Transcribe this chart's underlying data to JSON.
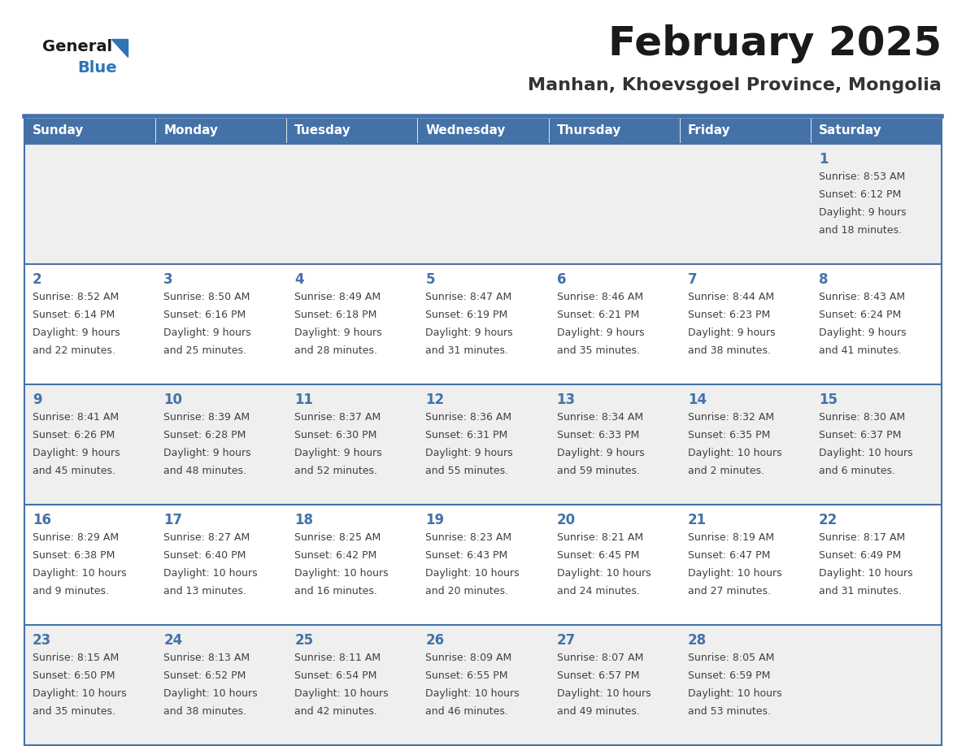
{
  "title": "February 2025",
  "subtitle": "Manhan, Khoevsgoel Province, Mongolia",
  "days_of_week": [
    "Sunday",
    "Monday",
    "Tuesday",
    "Wednesday",
    "Thursday",
    "Friday",
    "Saturday"
  ],
  "header_bg": "#4472a8",
  "header_text": "#ffffff",
  "cell_bg_even": "#efefef",
  "cell_bg_odd": "#ffffff",
  "border_color": "#4472a8",
  "day_number_color": "#4472a8",
  "text_color": "#404040",
  "title_color": "#1a1a1a",
  "subtitle_color": "#333333",
  "logo_text_color": "#1a1a1a",
  "logo_blue_color": "#2e75b6",
  "title_fontsize": 36,
  "subtitle_fontsize": 16,
  "header_fontsize": 11,
  "day_num_fontsize": 12,
  "cell_fontsize": 9,
  "weeks": [
    {
      "days": [
        {
          "day": null,
          "sunrise": null,
          "sunset": null,
          "daylight_line1": null,
          "daylight_line2": null
        },
        {
          "day": null,
          "sunrise": null,
          "sunset": null,
          "daylight_line1": null,
          "daylight_line2": null
        },
        {
          "day": null,
          "sunrise": null,
          "sunset": null,
          "daylight_line1": null,
          "daylight_line2": null
        },
        {
          "day": null,
          "sunrise": null,
          "sunset": null,
          "daylight_line1": null,
          "daylight_line2": null
        },
        {
          "day": null,
          "sunrise": null,
          "sunset": null,
          "daylight_line1": null,
          "daylight_line2": null
        },
        {
          "day": null,
          "sunrise": null,
          "sunset": null,
          "daylight_line1": null,
          "daylight_line2": null
        },
        {
          "day": 1,
          "sunrise": "8:53 AM",
          "sunset": "6:12 PM",
          "daylight_line1": "Daylight: 9 hours",
          "daylight_line2": "and 18 minutes."
        }
      ]
    },
    {
      "days": [
        {
          "day": 2,
          "sunrise": "8:52 AM",
          "sunset": "6:14 PM",
          "daylight_line1": "Daylight: 9 hours",
          "daylight_line2": "and 22 minutes."
        },
        {
          "day": 3,
          "sunrise": "8:50 AM",
          "sunset": "6:16 PM",
          "daylight_line1": "Daylight: 9 hours",
          "daylight_line2": "and 25 minutes."
        },
        {
          "day": 4,
          "sunrise": "8:49 AM",
          "sunset": "6:18 PM",
          "daylight_line1": "Daylight: 9 hours",
          "daylight_line2": "and 28 minutes."
        },
        {
          "day": 5,
          "sunrise": "8:47 AM",
          "sunset": "6:19 PM",
          "daylight_line1": "Daylight: 9 hours",
          "daylight_line2": "and 31 minutes."
        },
        {
          "day": 6,
          "sunrise": "8:46 AM",
          "sunset": "6:21 PM",
          "daylight_line1": "Daylight: 9 hours",
          "daylight_line2": "and 35 minutes."
        },
        {
          "day": 7,
          "sunrise": "8:44 AM",
          "sunset": "6:23 PM",
          "daylight_line1": "Daylight: 9 hours",
          "daylight_line2": "and 38 minutes."
        },
        {
          "day": 8,
          "sunrise": "8:43 AM",
          "sunset": "6:24 PM",
          "daylight_line1": "Daylight: 9 hours",
          "daylight_line2": "and 41 minutes."
        }
      ]
    },
    {
      "days": [
        {
          "day": 9,
          "sunrise": "8:41 AM",
          "sunset": "6:26 PM",
          "daylight_line1": "Daylight: 9 hours",
          "daylight_line2": "and 45 minutes."
        },
        {
          "day": 10,
          "sunrise": "8:39 AM",
          "sunset": "6:28 PM",
          "daylight_line1": "Daylight: 9 hours",
          "daylight_line2": "and 48 minutes."
        },
        {
          "day": 11,
          "sunrise": "8:37 AM",
          "sunset": "6:30 PM",
          "daylight_line1": "Daylight: 9 hours",
          "daylight_line2": "and 52 minutes."
        },
        {
          "day": 12,
          "sunrise": "8:36 AM",
          "sunset": "6:31 PM",
          "daylight_line1": "Daylight: 9 hours",
          "daylight_line2": "and 55 minutes."
        },
        {
          "day": 13,
          "sunrise": "8:34 AM",
          "sunset": "6:33 PM",
          "daylight_line1": "Daylight: 9 hours",
          "daylight_line2": "and 59 minutes."
        },
        {
          "day": 14,
          "sunrise": "8:32 AM",
          "sunset": "6:35 PM",
          "daylight_line1": "Daylight: 10 hours",
          "daylight_line2": "and 2 minutes."
        },
        {
          "day": 15,
          "sunrise": "8:30 AM",
          "sunset": "6:37 PM",
          "daylight_line1": "Daylight: 10 hours",
          "daylight_line2": "and 6 minutes."
        }
      ]
    },
    {
      "days": [
        {
          "day": 16,
          "sunrise": "8:29 AM",
          "sunset": "6:38 PM",
          "daylight_line1": "Daylight: 10 hours",
          "daylight_line2": "and 9 minutes."
        },
        {
          "day": 17,
          "sunrise": "8:27 AM",
          "sunset": "6:40 PM",
          "daylight_line1": "Daylight: 10 hours",
          "daylight_line2": "and 13 minutes."
        },
        {
          "day": 18,
          "sunrise": "8:25 AM",
          "sunset": "6:42 PM",
          "daylight_line1": "Daylight: 10 hours",
          "daylight_line2": "and 16 minutes."
        },
        {
          "day": 19,
          "sunrise": "8:23 AM",
          "sunset": "6:43 PM",
          "daylight_line1": "Daylight: 10 hours",
          "daylight_line2": "and 20 minutes."
        },
        {
          "day": 20,
          "sunrise": "8:21 AM",
          "sunset": "6:45 PM",
          "daylight_line1": "Daylight: 10 hours",
          "daylight_line2": "and 24 minutes."
        },
        {
          "day": 21,
          "sunrise": "8:19 AM",
          "sunset": "6:47 PM",
          "daylight_line1": "Daylight: 10 hours",
          "daylight_line2": "and 27 minutes."
        },
        {
          "day": 22,
          "sunrise": "8:17 AM",
          "sunset": "6:49 PM",
          "daylight_line1": "Daylight: 10 hours",
          "daylight_line2": "and 31 minutes."
        }
      ]
    },
    {
      "days": [
        {
          "day": 23,
          "sunrise": "8:15 AM",
          "sunset": "6:50 PM",
          "daylight_line1": "Daylight: 10 hours",
          "daylight_line2": "and 35 minutes."
        },
        {
          "day": 24,
          "sunrise": "8:13 AM",
          "sunset": "6:52 PM",
          "daylight_line1": "Daylight: 10 hours",
          "daylight_line2": "and 38 minutes."
        },
        {
          "day": 25,
          "sunrise": "8:11 AM",
          "sunset": "6:54 PM",
          "daylight_line1": "Daylight: 10 hours",
          "daylight_line2": "and 42 minutes."
        },
        {
          "day": 26,
          "sunrise": "8:09 AM",
          "sunset": "6:55 PM",
          "daylight_line1": "Daylight: 10 hours",
          "daylight_line2": "and 46 minutes."
        },
        {
          "day": 27,
          "sunrise": "8:07 AM",
          "sunset": "6:57 PM",
          "daylight_line1": "Daylight: 10 hours",
          "daylight_line2": "and 49 minutes."
        },
        {
          "day": 28,
          "sunrise": "8:05 AM",
          "sunset": "6:59 PM",
          "daylight_line1": "Daylight: 10 hours",
          "daylight_line2": "and 53 minutes."
        },
        {
          "day": null,
          "sunrise": null,
          "sunset": null,
          "daylight_line1": null,
          "daylight_line2": null
        }
      ]
    }
  ]
}
